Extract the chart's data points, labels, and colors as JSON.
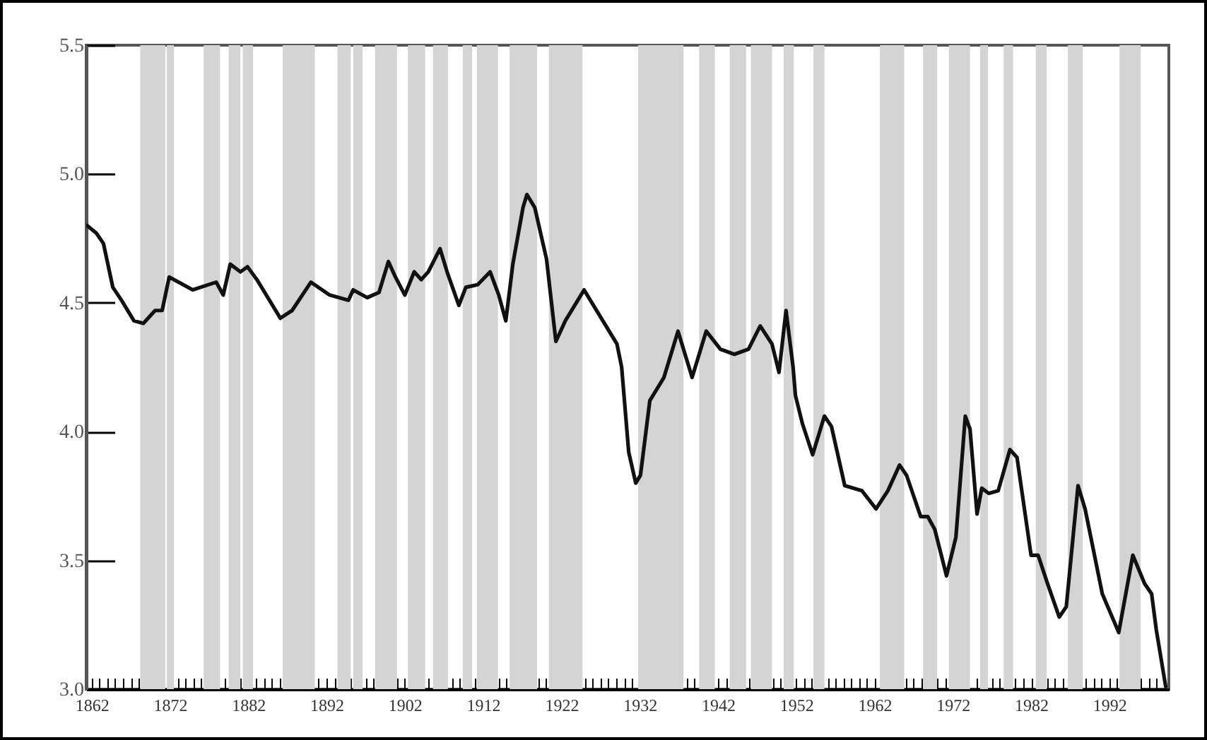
{
  "chart_data": {
    "type": "line",
    "x": [
      1861.4,
      1862.6,
      1863.5,
      1864.7,
      1865.8,
      1867.4,
      1868.6,
      1870.1,
      1871.0,
      1871.9,
      1874.9,
      1877.9,
      1878.8,
      1879.7,
      1881.0,
      1881.9,
      1883.1,
      1886.1,
      1887.6,
      1890.0,
      1892.4,
      1894.8,
      1895.4,
      1897.2,
      1898.7,
      1899.9,
      1900.8,
      1902.0,
      1903.2,
      1904.1,
      1905.0,
      1906.5,
      1907.4,
      1908.9,
      1909.8,
      1911.3,
      1912.9,
      1914.0,
      1914.9,
      1915.8,
      1917.1,
      1917.6,
      1918.6,
      1920.1,
      1921.3,
      1922.5,
      1924.9,
      1927.3,
      1929.1,
      1929.7,
      1930.6,
      1931.5,
      1932.1,
      1933.3,
      1935.1,
      1936.9,
      1938.7,
      1940.5,
      1942.3,
      1944.1,
      1945.9,
      1947.4,
      1948.9,
      1949.8,
      1950.7,
      1951.6,
      1951.9,
      1952.8,
      1954.1,
      1955.6,
      1956.5,
      1958.2,
      1960.4,
      1962.2,
      1963.7,
      1965.2,
      1966.1,
      1967.9,
      1968.8,
      1969.7,
      1971.2,
      1972.4,
      1973.6,
      1974.2,
      1975.1,
      1975.7,
      1976.6,
      1977.8,
      1979.3,
      1980.2,
      1982.0,
      1982.9,
      1984.1,
      1985.6,
      1986.5,
      1988.0,
      1988.9,
      1991.1,
      1993.2,
      1995.0,
      1996.5,
      1997.4,
      1998.0,
      1999.2
    ],
    "series": [
      {
        "color": "#111111",
        "values": [
          4.8,
          4.77,
          4.73,
          4.56,
          4.51,
          4.43,
          4.42,
          4.47,
          4.47,
          4.6,
          4.55,
          4.58,
          4.53,
          4.65,
          4.62,
          4.64,
          4.59,
          4.44,
          4.47,
          4.58,
          4.53,
          4.51,
          4.55,
          4.52,
          4.54,
          4.66,
          4.6,
          4.53,
          4.62,
          4.59,
          4.62,
          4.71,
          4.62,
          4.49,
          4.56,
          4.57,
          4.62,
          4.53,
          4.43,
          4.65,
          4.87,
          4.92,
          4.87,
          4.67,
          4.35,
          4.43,
          4.55,
          4.43,
          4.34,
          4.25,
          3.92,
          3.8,
          3.83,
          4.12,
          4.21,
          4.39,
          4.21,
          4.39,
          4.32,
          4.3,
          4.32,
          4.41,
          4.34,
          4.23,
          4.47,
          4.25,
          4.14,
          4.03,
          3.91,
          4.06,
          4.02,
          3.79,
          3.77,
          3.7,
          3.77,
          3.87,
          3.83,
          3.67,
          3.67,
          3.62,
          3.44,
          3.59,
          4.06,
          4.01,
          3.68,
          3.78,
          3.76,
          3.77,
          3.93,
          3.9,
          3.52,
          3.52,
          3.41,
          3.28,
          3.32,
          3.79,
          3.7,
          3.37,
          3.22,
          3.52,
          3.41,
          3.37,
          3.23,
          3.01
        ]
      }
    ],
    "xlim": [
      1861.3,
      1999.6
    ],
    "xticks": [
      1862,
      {
        "value": 1863,
        "label": null
      },
      {
        "value": 1864,
        "label": null
      },
      {
        "value": 1865,
        "label": null
      },
      {
        "value": 1866,
        "label": null
      },
      {
        "value": 1867,
        "label": null
      },
      {
        "value": 1868,
        "label": null
      },
      {
        "value": 1869,
        "label": null
      },
      {
        "value": 1870,
        "label": null
      },
      {
        "value": 1871,
        "label": null
      },
      1872,
      {
        "value": 1873,
        "label": null
      },
      {
        "value": 1874,
        "label": null
      },
      {
        "value": 1875,
        "label": null
      },
      {
        "value": 1876,
        "label": null
      },
      {
        "value": 1877,
        "label": null
      },
      {
        "value": 1878,
        "label": null
      },
      {
        "value": 1879,
        "label": null
      },
      {
        "value": 1880,
        "label": null
      },
      {
        "value": 1881,
        "label": null
      },
      1882,
      {
        "value": 1883,
        "label": null
      },
      {
        "value": 1884,
        "label": null
      },
      {
        "value": 1885,
        "label": null
      },
      {
        "value": 1886,
        "label": null
      },
      {
        "value": 1887,
        "label": null
      },
      {
        "value": 1888,
        "label": null
      },
      {
        "value": 1889,
        "label": null
      },
      {
        "value": 1890,
        "label": null
      },
      {
        "value": 1891,
        "label": null
      },
      1892,
      {
        "value": 1893,
        "label": null
      },
      {
        "value": 1894,
        "label": null
      },
      {
        "value": 1895,
        "label": null
      },
      {
        "value": 1896,
        "label": null
      },
      {
        "value": 1897,
        "label": null
      },
      {
        "value": 1898,
        "label": null
      },
      {
        "value": 1899,
        "label": null
      },
      {
        "value": 1900,
        "label": null
      },
      {
        "value": 1901,
        "label": null
      },
      1902,
      {
        "value": 1903,
        "label": null
      },
      {
        "value": 1904,
        "label": null
      },
      {
        "value": 1905,
        "label": null
      },
      {
        "value": 1906,
        "label": null
      },
      {
        "value": 1907,
        "label": null
      },
      {
        "value": 1908,
        "label": null
      },
      {
        "value": 1909,
        "label": null
      },
      {
        "value": 1910,
        "label": null
      },
      {
        "value": 1911,
        "label": null
      },
      1912,
      {
        "value": 1913,
        "label": null
      },
      {
        "value": 1914,
        "label": null
      },
      {
        "value": 1915,
        "label": null
      },
      {
        "value": 1916,
        "label": null
      },
      {
        "value": 1917,
        "label": null
      },
      {
        "value": 1918,
        "label": null
      },
      {
        "value": 1919,
        "label": null
      },
      {
        "value": 1920,
        "label": null
      },
      {
        "value": 1921,
        "label": null
      },
      1922,
      {
        "value": 1923,
        "label": null
      },
      {
        "value": 1924,
        "label": null
      },
      {
        "value": 1925,
        "label": null
      },
      {
        "value": 1926,
        "label": null
      },
      {
        "value": 1927,
        "label": null
      },
      {
        "value": 1928,
        "label": null
      },
      {
        "value": 1929,
        "label": null
      },
      {
        "value": 1930,
        "label": null
      },
      {
        "value": 1931,
        "label": null
      },
      1932,
      {
        "value": 1933,
        "label": null
      },
      {
        "value": 1934,
        "label": null
      },
      {
        "value": 1935,
        "label": null
      },
      {
        "value": 1936,
        "label": null
      },
      {
        "value": 1937,
        "label": null
      },
      {
        "value": 1938,
        "label": null
      },
      {
        "value": 1939,
        "label": null
      },
      {
        "value": 1940,
        "label": null
      },
      {
        "value": 1941,
        "label": null
      },
      1942,
      {
        "value": 1943,
        "label": null
      },
      {
        "value": 1944,
        "label": null
      },
      {
        "value": 1945,
        "label": null
      },
      {
        "value": 1946,
        "label": null
      },
      {
        "value": 1947,
        "label": null
      },
      {
        "value": 1948,
        "label": null
      },
      {
        "value": 1949,
        "label": null
      },
      {
        "value": 1950,
        "label": null
      },
      {
        "value": 1951,
        "label": null
      },
      1952,
      {
        "value": 1953,
        "label": null
      },
      {
        "value": 1954,
        "label": null
      },
      {
        "value": 1955,
        "label": null
      },
      {
        "value": 1956,
        "label": null
      },
      {
        "value": 1957,
        "label": null
      },
      {
        "value": 1958,
        "label": null
      },
      {
        "value": 1959,
        "label": null
      },
      {
        "value": 1960,
        "label": null
      },
      {
        "value": 1961,
        "label": null
      },
      1962,
      {
        "value": 1963,
        "label": null
      },
      {
        "value": 1964,
        "label": null
      },
      {
        "value": 1965,
        "label": null
      },
      {
        "value": 1966,
        "label": null
      },
      {
        "value": 1967,
        "label": null
      },
      {
        "value": 1968,
        "label": null
      },
      {
        "value": 1969,
        "label": null
      },
      {
        "value": 1970,
        "label": null
      },
      {
        "value": 1971,
        "label": null
      },
      1972,
      {
        "value": 1973,
        "label": null
      },
      {
        "value": 1974,
        "label": null
      },
      {
        "value": 1975,
        "label": null
      },
      {
        "value": 1976,
        "label": null
      },
      {
        "value": 1977,
        "label": null
      },
      {
        "value": 1978,
        "label": null
      },
      {
        "value": 1979,
        "label": null
      },
      {
        "value": 1980,
        "label": null
      },
      {
        "value": 1981,
        "label": null
      },
      1982,
      {
        "value": 1983,
        "label": null
      },
      {
        "value": 1984,
        "label": null
      },
      {
        "value": 1985,
        "label": null
      },
      {
        "value": 1986,
        "label": null
      },
      {
        "value": 1987,
        "label": null
      },
      {
        "value": 1988,
        "label": null
      },
      {
        "value": 1989,
        "label": null
      },
      {
        "value": 1990,
        "label": null
      },
      {
        "value": 1991,
        "label": null
      },
      1992,
      {
        "value": 1993,
        "label": null
      },
      {
        "value": 1994,
        "label": null
      },
      {
        "value": 1995,
        "label": null
      },
      {
        "value": 1996,
        "label": null
      },
      {
        "value": 1997,
        "label": null
      },
      {
        "value": 1998,
        "label": null
      },
      {
        "value": 1999,
        "label": null
      }
    ],
    "ylim": [
      3.0,
      5.5
    ],
    "yticks": [
      {
        "value": 3,
        "label": "3.0"
      },
      3.5,
      {
        "value": 4,
        "label": "4.0"
      },
      4.5,
      {
        "value": 5,
        "label": "5.0"
      },
      5.5
    ],
    "grid": false,
    "line_style": "solid",
    "bands": [
      {
        "axis": "x",
        "from": 1868.2,
        "to": 1871.4,
        "color": "#d4d4d4"
      },
      {
        "axis": "x",
        "from": 1871.6,
        "to": 1872.5,
        "color": "#d4d4d4"
      },
      {
        "axis": "x",
        "from": 1876.3,
        "to": 1878.4,
        "color": "#d4d4d4"
      },
      {
        "axis": "x",
        "from": 1879.5,
        "to": 1881.0,
        "color": "#d4d4d4"
      },
      {
        "axis": "x",
        "from": 1881.3,
        "to": 1882.6,
        "color": "#d4d4d4"
      },
      {
        "axis": "x",
        "from": 1886.4,
        "to": 1890.5,
        "color": "#d4d4d4"
      },
      {
        "axis": "x",
        "from": 1893.4,
        "to": 1895.1,
        "color": "#d4d4d4"
      },
      {
        "axis": "x",
        "from": 1895.4,
        "to": 1896.6,
        "color": "#d4d4d4"
      },
      {
        "axis": "x",
        "from": 1898.2,
        "to": 1901.0,
        "color": "#d4d4d4"
      },
      {
        "axis": "x",
        "from": 1902.4,
        "to": 1904.6,
        "color": "#d4d4d4"
      },
      {
        "axis": "x",
        "from": 1905.6,
        "to": 1907.5,
        "color": "#d4d4d4"
      },
      {
        "axis": "x",
        "from": 1909.4,
        "to": 1910.6,
        "color": "#d4d4d4"
      },
      {
        "axis": "x",
        "from": 1911.2,
        "to": 1913.9,
        "color": "#d4d4d4"
      },
      {
        "axis": "x",
        "from": 1915.4,
        "to": 1918.9,
        "color": "#d4d4d4"
      },
      {
        "axis": "x",
        "from": 1920.4,
        "to": 1924.7,
        "color": "#d4d4d4"
      },
      {
        "axis": "x",
        "from": 1931.8,
        "to": 1937.6,
        "color": "#d4d4d4"
      },
      {
        "axis": "x",
        "from": 1939.6,
        "to": 1941.6,
        "color": "#d4d4d4"
      },
      {
        "axis": "x",
        "from": 1943.5,
        "to": 1945.6,
        "color": "#d4d4d4"
      },
      {
        "axis": "x",
        "from": 1946.2,
        "to": 1948.9,
        "color": "#d4d4d4"
      },
      {
        "axis": "x",
        "from": 1950.4,
        "to": 1951.7,
        "color": "#d4d4d4"
      },
      {
        "axis": "x",
        "from": 1954.2,
        "to": 1955.6,
        "color": "#d4d4d4"
      },
      {
        "axis": "x",
        "from": 1962.7,
        "to": 1965.8,
        "color": "#d4d4d4"
      },
      {
        "axis": "x",
        "from": 1968.2,
        "to": 1970.0,
        "color": "#d4d4d4"
      },
      {
        "axis": "x",
        "from": 1971.5,
        "to": 1974.2,
        "color": "#d4d4d4"
      },
      {
        "axis": "x",
        "from": 1975.5,
        "to": 1976.5,
        "color": "#d4d4d4"
      },
      {
        "axis": "x",
        "from": 1978.5,
        "to": 1979.7,
        "color": "#d4d4d4"
      },
      {
        "axis": "x",
        "from": 1982.6,
        "to": 1984.0,
        "color": "#d4d4d4"
      },
      {
        "axis": "x",
        "from": 1986.7,
        "to": 1988.6,
        "color": "#d4d4d4"
      },
      {
        "axis": "x",
        "from": 1993.3,
        "to": 1996.0,
        "color": "#d4d4d4"
      }
    ]
  }
}
